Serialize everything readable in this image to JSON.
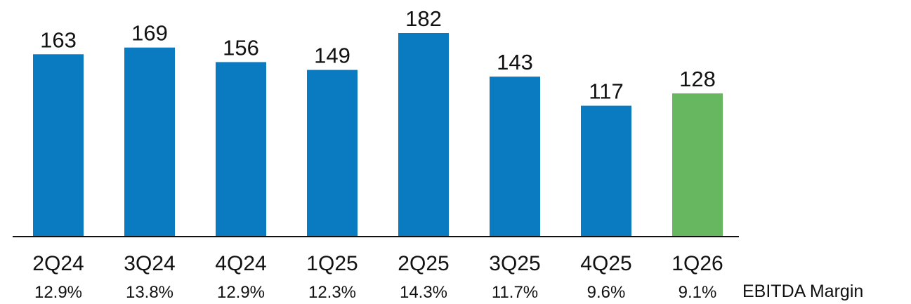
{
  "chart_data": {
    "type": "bar",
    "categories": [
      "2Q24",
      "3Q24",
      "4Q24",
      "1Q25",
      "2Q25",
      "3Q25",
      "4Q25",
      "1Q26"
    ],
    "values": [
      163,
      169,
      156,
      149,
      182,
      143,
      117,
      128
    ],
    "margins": [
      "12.9%",
      "13.8%",
      "12.9%",
      "12.3%",
      "14.3%",
      "11.7%",
      "9.6%",
      "9.1%"
    ],
    "margin_label": "EBITDA Margin",
    "colors": {
      "default": "#0B7BC1",
      "highlight": "#66B75F",
      "axis": "#111111"
    },
    "highlight_index": 7,
    "ylim": [
      0,
      182
    ]
  }
}
